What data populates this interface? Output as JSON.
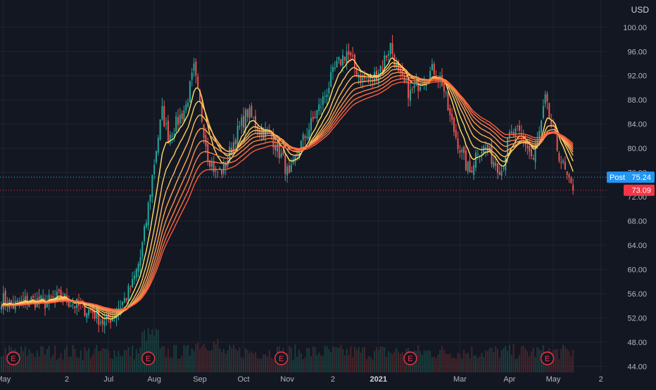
{
  "currency": "USD",
  "colors": {
    "background": "#131722",
    "grid": "#1f2433",
    "axis_text": "#b2b5be",
    "up": "#26a69a",
    "down": "#ef5350",
    "post_badge": "#2196f3",
    "last_badge": "#f23645",
    "earnings_marker": "#f23645",
    "ribbon_fast": "#ffe066",
    "ribbon_slow": "#ff5a3c"
  },
  "markers": {
    "post_label": "Post",
    "post_value": "75.24",
    "last_value": "73.09",
    "earnings_letter": "E"
  },
  "chart_data": {
    "type": "candlestick",
    "series_name": "",
    "y_axis": {
      "ylim": [
        43.0,
        104.5
      ],
      "ticks": [
        44,
        48,
        52,
        56,
        60,
        64,
        68,
        72,
        76,
        80,
        84,
        88,
        92,
        96,
        100
      ],
      "tick_labels": [
        "44.00",
        "48.00",
        "52.00",
        "56.00",
        "60.00",
        "64.00",
        "68.00",
        "72.00",
        "76.00",
        "80.00",
        "84.00",
        "88.00",
        "92.00",
        "96.00",
        "100.00"
      ]
    },
    "x_axis": {
      "tick_labels": [
        "May",
        "2",
        "Jul",
        "Aug",
        "Sep",
        "Oct",
        "Nov",
        "2",
        "2021",
        "Mar",
        "Apr",
        "May",
        "2"
      ],
      "tick_index": [
        1,
        33,
        54,
        77,
        100,
        122,
        144,
        167,
        190,
        231,
        256,
        278,
        302
      ]
    },
    "earnings_index": [
      6,
      74,
      141,
      206,
      275
    ],
    "post_price": 75.24,
    "last_price": 73.09,
    "grid": true,
    "legend": "none",
    "price_anchors": [
      [
        0,
        55.2
      ],
      [
        6,
        54.0
      ],
      [
        14,
        55.0
      ],
      [
        22,
        54.5
      ],
      [
        30,
        55.5
      ],
      [
        38,
        54.0
      ],
      [
        46,
        53.0
      ],
      [
        52,
        51.0
      ],
      [
        56,
        52.5
      ],
      [
        62,
        55.0
      ],
      [
        66,
        57.5
      ],
      [
        70,
        62.0
      ],
      [
        73,
        68.0
      ],
      [
        75,
        73.0
      ],
      [
        78,
        80.0
      ],
      [
        81,
        86.0
      ],
      [
        84,
        82.0
      ],
      [
        88,
        84.0
      ],
      [
        93,
        87.0
      ],
      [
        97,
        93.0
      ],
      [
        100,
        87.0
      ],
      [
        104,
        79.0
      ],
      [
        108,
        76.0
      ],
      [
        112,
        76.5
      ],
      [
        118,
        82.0
      ],
      [
        124,
        86.0
      ],
      [
        130,
        83.0
      ],
      [
        136,
        82.0
      ],
      [
        142,
        78.0
      ],
      [
        145,
        75.0
      ],
      [
        150,
        80.0
      ],
      [
        156,
        84.0
      ],
      [
        162,
        88.0
      ],
      [
        168,
        93.0
      ],
      [
        174,
        96.0
      ],
      [
        180,
        92.0
      ],
      [
        186,
        91.0
      ],
      [
        192,
        94.0
      ],
      [
        196,
        97.0
      ],
      [
        200,
        92.0
      ],
      [
        206,
        89.0
      ],
      [
        212,
        91.5
      ],
      [
        218,
        93.0
      ],
      [
        222,
        91.0
      ],
      [
        226,
        85.0
      ],
      [
        230,
        81.0
      ],
      [
        233,
        78.0
      ],
      [
        236,
        76.0
      ],
      [
        240,
        80.0
      ],
      [
        244,
        80.0
      ],
      [
        248,
        78.0
      ],
      [
        252,
        76.5
      ],
      [
        256,
        82.0
      ],
      [
        260,
        82.5
      ],
      [
        264,
        81.0
      ],
      [
        268,
        78.0
      ],
      [
        272,
        84.0
      ],
      [
        274,
        88.0
      ],
      [
        276,
        85.0
      ],
      [
        280,
        80.0
      ],
      [
        283,
        77.0
      ],
      [
        286,
        74.0
      ],
      [
        288,
        73.09
      ]
    ],
    "ribbon_periods": [
      8,
      14,
      20,
      26,
      32,
      38,
      44,
      50
    ],
    "volume_ratio": "minor"
  }
}
